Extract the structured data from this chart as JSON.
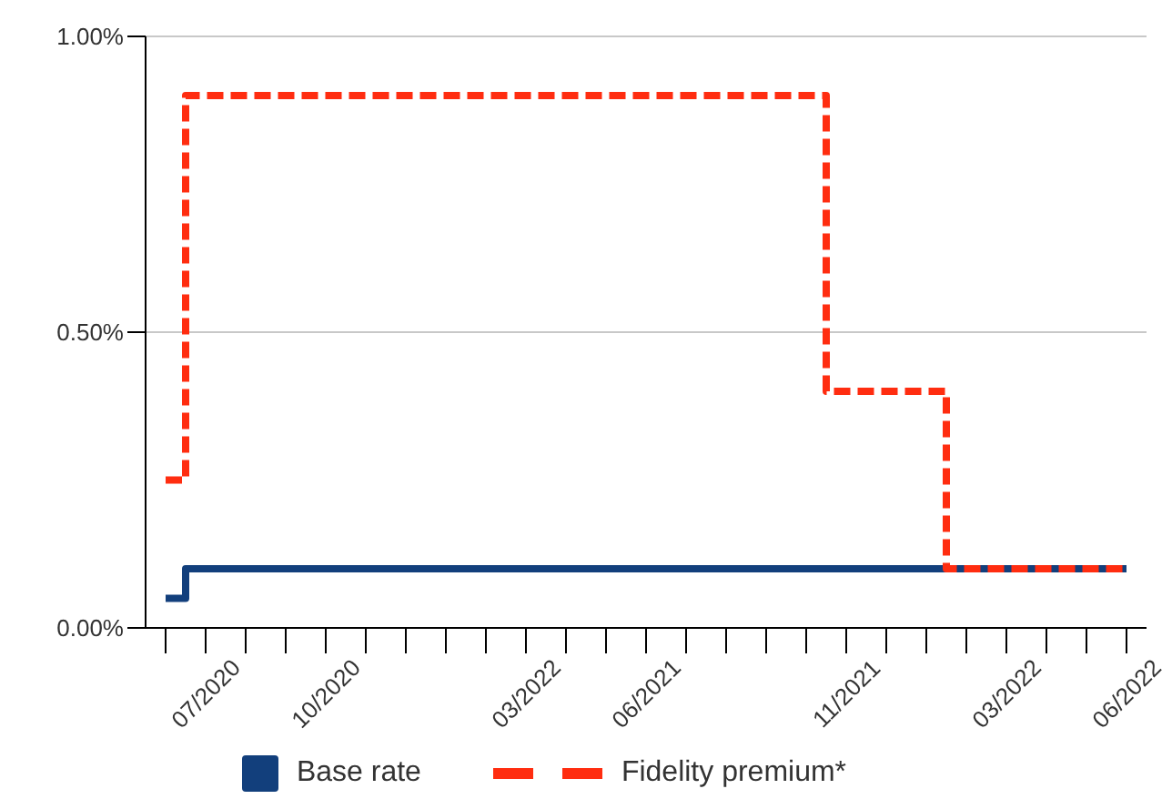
{
  "chart_data": {
    "type": "step",
    "categories": [
      null,
      "07/2020",
      null,
      null,
      "10/2020",
      null,
      null,
      null,
      null,
      "03/2022",
      null,
      null,
      "06/2021",
      null,
      null,
      null,
      null,
      "11/2021",
      null,
      null,
      null,
      "03/2022",
      null,
      null,
      "06/2022"
    ],
    "series": [
      {
        "name": "Base rate",
        "color": "#123f7c",
        "line_style": "solid",
        "values": [
          0.05,
          0.1,
          0.1,
          0.1,
          0.1,
          0.1,
          0.1,
          0.1,
          0.1,
          0.1,
          0.1,
          0.1,
          0.1,
          0.1,
          0.1,
          0.1,
          0.1,
          0.1,
          0.1,
          0.1,
          0.1,
          0.1,
          0.1,
          0.1,
          0.1
        ]
      },
      {
        "name": "Fidelity premium*",
        "color": "#ff2d10",
        "line_style": "dashed",
        "values": [
          0.25,
          0.9,
          0.9,
          0.9,
          0.9,
          0.9,
          0.9,
          0.9,
          0.9,
          0.9,
          0.9,
          0.9,
          0.9,
          0.9,
          0.9,
          0.9,
          0.9,
          0.4,
          0.4,
          0.4,
          0.1,
          0.1,
          0.1,
          0.1,
          0.1
        ]
      }
    ],
    "ylim": [
      0,
      1
    ],
    "yticks": [
      {
        "value": 0,
        "label": "0.00%"
      },
      {
        "value": 0.5,
        "label": "0.50%"
      },
      {
        "value": 1,
        "label": "1.00%"
      }
    ],
    "grid": "y",
    "legend": "bottom",
    "marker": "none"
  }
}
